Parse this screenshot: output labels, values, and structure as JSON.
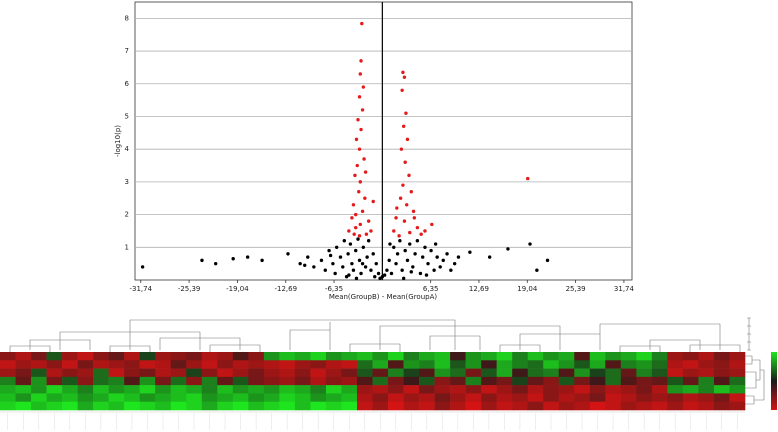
{
  "chart_data": [
    {
      "type": "scatter",
      "x_label": "Mean(GroupB) - Mean(GroupA)",
      "y_label": "-log10(p)",
      "xlim": [
        -32.5,
        32.8
      ],
      "ylim": [
        0,
        8.5
      ],
      "xticks": [
        {
          "value": -31.74,
          "label": "-31,74"
        },
        {
          "value": -25.39,
          "label": "-25,39"
        },
        {
          "value": -19.04,
          "label": "-19,04"
        },
        {
          "value": -12.69,
          "label": "-12,69"
        },
        {
          "value": -6.35,
          "label": "-6,35"
        },
        {
          "value": 6.35,
          "label": "6,35"
        },
        {
          "value": 12.69,
          "label": "12,69"
        },
        {
          "value": 19.04,
          "label": "19,04"
        },
        {
          "value": 25.39,
          "label": "25,39"
        },
        {
          "value": 31.74,
          "label": "31,74"
        }
      ],
      "yticks": [
        1,
        2,
        3,
        4,
        5,
        6,
        7,
        8
      ],
      "grid": true,
      "series": [
        {
          "color": "#000000",
          "x": [
            -31.5,
            -23.7,
            -21.9,
            -19.6,
            -17.7,
            -15.8,
            -12.4,
            -10.2,
            14.1,
            16.5,
            19.4,
            21.7,
            20.3,
            11.5,
            -8,
            -7.5,
            -7,
            -6.5,
            -6.2,
            -6,
            -5.5,
            -5.2,
            -5,
            -4.7,
            -4.5,
            -4.2,
            -4,
            -3.8,
            -3.5,
            -3.2,
            -3,
            -2.8,
            -2.5,
            -2.2,
            -2,
            -1.8,
            -1.5,
            -1.2,
            -1,
            -0.8,
            -0.5,
            -0.3,
            0,
            0.3,
            0.6,
            0.9,
            1.2,
            1.5,
            1.8,
            2,
            2.3,
            2.6,
            3,
            3.3,
            3.6,
            4,
            4.3,
            4.6,
            5,
            5.3,
            5.6,
            6,
            6.4,
            6.8,
            7.2,
            7.6,
            8,
            8.5,
            9,
            9.5,
            10,
            -9,
            -9.8,
            -10.8,
            -4.4,
            -2.6,
            1,
            3.8,
            5.8,
            -6.8,
            7,
            -3.4,
            2.8
          ],
          "y": [
            0.4,
            0.6,
            0.5,
            0.65,
            0.7,
            0.6,
            0.8,
            0.45,
            0.7,
            0.95,
            1.1,
            0.6,
            0.3,
            0.85,
            0.6,
            0.3,
            0.9,
            0.5,
            0.2,
            1.0,
            0.7,
            0.4,
            1.2,
            0.1,
            0.8,
            1.1,
            0.5,
            0.3,
            0.9,
            1.25,
            0.6,
            0.2,
            1.0,
            0.4,
            0.7,
            1.2,
            0.3,
            0.8,
            0.1,
            0.5,
            0.2,
            0.05,
            0.1,
            0.15,
            0.3,
            0.6,
            0.2,
            1.0,
            0.5,
            0.8,
            1.2,
            0.3,
            0.9,
            0.6,
            1.1,
            0.4,
            0.8,
            1.2,
            0.2,
            0.7,
            1.0,
            0.5,
            0.9,
            0.3,
            0.7,
            0.4,
            0.6,
            0.8,
            0.3,
            0.5,
            0.7,
            0.4,
            0.7,
            0.5,
            0.15,
            0.5,
            1.1,
            0.25,
            0.15,
            0.75,
            1.1,
            0.05,
            0.05
          ]
        },
        {
          "color": "#e41a1a",
          "x": [
            -2.7,
            -2.8,
            -2.9,
            -2.5,
            -3,
            -2.6,
            -3.2,
            -2.8,
            -3.4,
            -3,
            -2.4,
            -3.3,
            -3.6,
            -2.9,
            -3.1,
            -2.3,
            -3.8,
            -2.6,
            -4,
            -1.8,
            -3.5,
            -4.4,
            -2.1,
            -3,
            -1.5,
            -2.9,
            -3.7,
            -1.2,
            -2.2,
            -3.5,
            2.7,
            2.9,
            2.6,
            3.1,
            2.8,
            3.3,
            2.5,
            3.0,
            3.5,
            2.7,
            3.8,
            2.4,
            3.2,
            4.1,
            1.8,
            2.9,
            4.6,
            1.5,
            3.6,
            5.1,
            2.2,
            4.2,
            5.6,
            6.5,
            1.9,
            19.1
          ],
          "y": [
            7.84,
            6.7,
            6.3,
            5.9,
            5.6,
            5.2,
            4.9,
            4.6,
            4.3,
            4.0,
            3.7,
            3.5,
            3.2,
            3.0,
            2.7,
            2.5,
            2.3,
            2.1,
            1.9,
            1.8,
            1.6,
            1.5,
            1.4,
            1.35,
            1.5,
            1.7,
            1.4,
            2.4,
            3.3,
            2.0,
            6.35,
            6.2,
            5.8,
            5.1,
            4.7,
            4.3,
            4.0,
            3.6,
            3.2,
            2.9,
            2.7,
            2.5,
            2.3,
            2.1,
            1.9,
            1.8,
            1.6,
            1.5,
            1.45,
            1.4,
            1.35,
            1.9,
            1.5,
            1.7,
            2.2,
            3.1
          ]
        }
      ]
    },
    {
      "type": "heatmap",
      "zlim": [
        -1,
        1
      ],
      "colormap": [
        "#1ee61e",
        "#1a1a1a",
        "#d41414"
      ],
      "matrix": [
        [
          0.6,
          0.8,
          0.5,
          -0.3,
          0.7,
          0.9,
          0.6,
          0.4,
          0.8,
          -0.2,
          0.7,
          0.6,
          0.5,
          0.8,
          0.7,
          0.3,
          0.6,
          -0.6,
          -0.8,
          -0.7,
          -0.9,
          -0.6,
          -0.7,
          -0.8,
          -0.6,
          -0.9,
          -0.5,
          -0.7,
          -0.8,
          0.2,
          -0.6,
          -0.7,
          -0.9,
          -0.5,
          -0.8,
          -0.6,
          -0.7,
          0.3,
          -0.8,
          -0.6,
          -0.7,
          -0.9,
          -0.5,
          0.7,
          0.6,
          0.8,
          0.5,
          0.7
        ],
        [
          0.9,
          0.7,
          0.8,
          0.6,
          0.9,
          0.5,
          0.8,
          0.7,
          0.6,
          0.9,
          0.8,
          0.4,
          0.7,
          0.9,
          0.6,
          0.8,
          0.7,
          0.8,
          0.9,
          0.7,
          0.6,
          0.8,
          0.9,
          -0.4,
          -0.7,
          0.3,
          -0.6,
          -0.5,
          -0.8,
          -0.3,
          -0.6,
          0.2,
          -0.7,
          -0.5,
          -0.4,
          -0.8,
          -0.6,
          -0.3,
          -0.7,
          0.3,
          -0.5,
          -0.6,
          -0.4,
          0.8,
          0.9,
          0.7,
          0.6,
          0.8
        ],
        [
          0.7,
          0.5,
          -0.3,
          0.8,
          0.6,
          0.7,
          -0.4,
          0.9,
          0.6,
          0.5,
          0.8,
          0.7,
          -0.2,
          0.6,
          0.9,
          0.7,
          0.5,
          0.7,
          0.8,
          0.6,
          0.9,
          0.7,
          0.5,
          -0.3,
          0.4,
          -0.5,
          -0.2,
          0.3,
          -0.6,
          -0.4,
          0.5,
          -0.3,
          -0.7,
          0.2,
          -0.4,
          -0.5,
          0.3,
          -0.6,
          -0.2,
          -0.4,
          0.4,
          -0.5,
          -0.3,
          0.9,
          0.7,
          0.8,
          0.6,
          0.7
        ],
        [
          -0.5,
          0.4,
          -0.6,
          0.5,
          -0.3,
          0.6,
          -0.4,
          -0.5,
          0.3,
          -0.6,
          0.5,
          -0.4,
          0.6,
          -0.5,
          0.4,
          -0.3,
          0.5,
          0.6,
          0.7,
          0.5,
          0.8,
          0.6,
          0.7,
          0.3,
          -0.4,
          0.5,
          0.2,
          -0.3,
          0.6,
          0.4,
          -0.5,
          0.3,
          0.5,
          -0.2,
          0.4,
          0.6,
          -0.3,
          0.5,
          0.2,
          -0.4,
          0.3,
          0.5,
          0.4,
          -0.3,
          0.4,
          -0.5,
          0.3,
          -0.4
        ],
        [
          -0.7,
          -0.8,
          -0.6,
          -0.9,
          -0.7,
          -0.5,
          -0.8,
          -0.6,
          -0.7,
          -0.9,
          -0.6,
          -0.8,
          -0.7,
          -0.5,
          -0.8,
          -0.6,
          -0.7,
          -0.6,
          -0.8,
          -0.7,
          -0.5,
          -0.9,
          -0.7,
          0.7,
          0.8,
          0.6,
          0.9,
          0.5,
          0.7,
          0.8,
          0.6,
          0.9,
          0.7,
          0.5,
          0.8,
          0.6,
          0.7,
          0.9,
          0.6,
          0.8,
          0.7,
          0.5,
          0.8,
          -0.6,
          -0.7,
          -0.5,
          -0.8,
          -0.6
        ],
        [
          -0.8,
          -0.6,
          -0.9,
          -0.7,
          -0.8,
          -0.6,
          -0.7,
          -0.9,
          -0.8,
          -0.6,
          -0.7,
          -0.8,
          -0.9,
          -0.6,
          -0.7,
          -0.8,
          -0.6,
          -0.7,
          -0.9,
          -0.8,
          -0.6,
          -0.7,
          -0.8,
          0.8,
          0.6,
          0.9,
          0.7,
          0.8,
          0.5,
          0.7,
          0.9,
          0.6,
          0.8,
          0.7,
          0.9,
          0.6,
          0.8,
          0.7,
          0.5,
          0.9,
          0.8,
          0.6,
          0.7,
          0.6,
          0.8,
          0.7,
          0.5,
          0.9
        ],
        [
          -0.9,
          -1,
          -0.8,
          -0.9,
          -1,
          -0.7,
          -0.9,
          -0.8,
          -1,
          -0.9,
          -0.8,
          -1,
          -0.9,
          -0.7,
          -0.9,
          -1,
          -0.8,
          -0.9,
          -1,
          -0.8,
          -1,
          -0.9,
          -1,
          0.9,
          0.7,
          1,
          0.8,
          0.9,
          0.6,
          0.8,
          1,
          0.7,
          0.9,
          0.8,
          0.6,
          0.9,
          0.7,
          0.8,
          1,
          0.9,
          0.7,
          0.8,
          0.9,
          0.7,
          0.9,
          0.8,
          0.6,
          0.7
        ]
      ]
    }
  ]
}
